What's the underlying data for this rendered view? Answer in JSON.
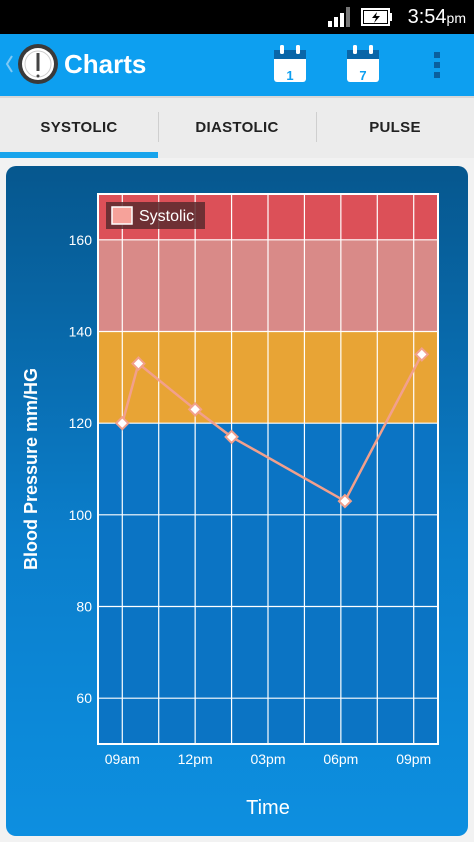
{
  "status_bar": {
    "time": "3:54",
    "time_suffix": "pm"
  },
  "action_bar": {
    "title": "Charts",
    "day_button_label": "1",
    "week_button_label": "7"
  },
  "tabs": [
    {
      "label": "SYSTOLIC",
      "selected": true
    },
    {
      "label": "DIASTOLIC",
      "selected": false
    },
    {
      "label": "PULSE",
      "selected": false
    }
  ],
  "chart_data": {
    "type": "line",
    "ylabel": "Blood Pressure mm/HG",
    "xlabel": "Time",
    "legend": {
      "label": "Systolic",
      "placement": "top-left"
    },
    "ylim": [
      50,
      170
    ],
    "y_ticks": [
      60,
      80,
      100,
      120,
      140,
      160
    ],
    "x_tick_labels": [
      "09am",
      "12pm",
      "03pm",
      "06pm",
      "09pm"
    ],
    "bands": [
      {
        "from": 160,
        "to": 170,
        "color": "#dc5058"
      },
      {
        "from": 140,
        "to": 160,
        "color": "#d98a88"
      },
      {
        "from": 120,
        "to": 140,
        "color": "#e8a435"
      },
      {
        "from": 50,
        "to": 120,
        "color": "#0b74c4"
      }
    ],
    "series": [
      {
        "name": "Systolic",
        "color": "#f2a08c",
        "points": [
          {
            "x": "09:00",
            "y": 120
          },
          {
            "x": "09:40",
            "y": 133
          },
          {
            "x": "12:00",
            "y": 123
          },
          {
            "x": "13:30",
            "y": 117
          },
          {
            "x": "18:10",
            "y": 103
          },
          {
            "x": "21:20",
            "y": 135
          }
        ]
      }
    ]
  }
}
